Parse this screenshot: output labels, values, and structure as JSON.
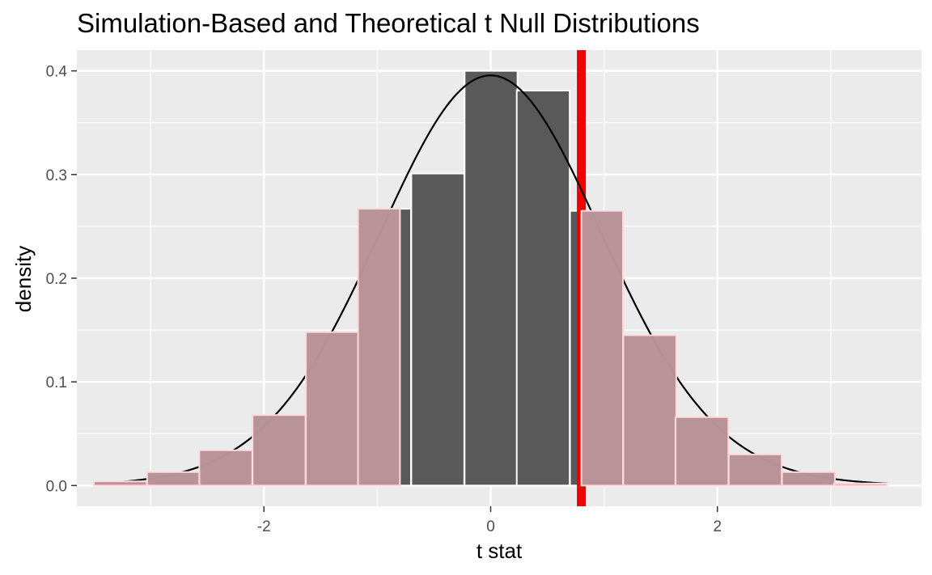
{
  "chart_data": {
    "type": "bar",
    "title": "Simulation-Based and Theoretical t Null Distributions",
    "xlabel": "t stat",
    "ylabel": "density",
    "xlim": [
      -3.65,
      3.8
    ],
    "ylim": [
      -0.02,
      0.42
    ],
    "x_ticks": [
      -2,
      0,
      2
    ],
    "y_ticks": [
      0.0,
      0.1,
      0.2,
      0.3,
      0.4
    ],
    "x_tick_labels": [
      "-2",
      "0",
      "2"
    ],
    "y_tick_labels": [
      "0.0",
      "0.1",
      "0.2",
      "0.3",
      "0.4"
    ],
    "grid": true,
    "background_color": "#ebebeb",
    "bar_color": "#595959",
    "shaded_bar_color": "#bc979c",
    "shaded_edge_color": "#ffd7dd",
    "observed_line_color": "#ee0000",
    "curve_color": "#000000",
    "histogram": {
      "bin_width": 0.467,
      "bins": [
        {
          "start": -3.5,
          "density": 0.004
        },
        {
          "start": -3.03,
          "density": 0.013
        },
        {
          "start": -2.57,
          "density": 0.034
        },
        {
          "start": -2.1,
          "density": 0.068
        },
        {
          "start": -1.63,
          "density": 0.148
        },
        {
          "start": -1.17,
          "density": 0.267
        },
        {
          "start": -0.7,
          "density": 0.301
        },
        {
          "start": -0.23,
          "density": 0.4
        },
        {
          "start": 0.23,
          "density": 0.381
        },
        {
          "start": 0.7,
          "density": 0.265
        },
        {
          "start": 1.17,
          "density": 0.145
        },
        {
          "start": 1.63,
          "density": 0.066
        },
        {
          "start": 2.1,
          "density": 0.03
        },
        {
          "start": 2.57,
          "density": 0.013
        },
        {
          "start": 3.03,
          "density": 0.002
        }
      ]
    },
    "observed_stat": 0.8,
    "shade_direction": "both",
    "theoretical_curve": {
      "distribution": "t",
      "df": 30,
      "x_range": [
        -3.5,
        3.5
      ]
    }
  }
}
